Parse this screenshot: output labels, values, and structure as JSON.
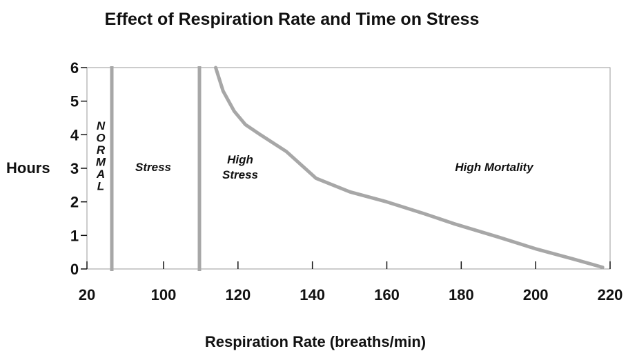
{
  "chart_data": {
    "type": "line",
    "title": "Effect of Respiration Rate and Time on Stress",
    "xlabel": "Respiration Rate (breaths/min)",
    "ylabel": "Hours",
    "x_ticks": [
      "20",
      "100",
      "120",
      "140",
      "160",
      "180",
      "200",
      "220"
    ],
    "y_ticks": [
      "0",
      "1",
      "2",
      "3",
      "4",
      "5",
      "6"
    ],
    "ylim": [
      0,
      6
    ],
    "grid": false,
    "boundaries": [
      {
        "x": 25,
        "y_range": [
          0,
          6
        ]
      },
      {
        "x": 110,
        "y_range": [
          0,
          6
        ]
      }
    ],
    "series": [
      {
        "points": [
          {
            "x": 114,
            "y": 6.0
          },
          {
            "x": 116,
            "y": 5.3
          },
          {
            "x": 119,
            "y": 4.7
          },
          {
            "x": 122,
            "y": 4.3
          },
          {
            "x": 126,
            "y": 4.0
          },
          {
            "x": 133,
            "y": 3.5
          },
          {
            "x": 141,
            "y": 2.7
          },
          {
            "x": 150,
            "y": 2.3
          },
          {
            "x": 160,
            "y": 2.0
          },
          {
            "x": 170,
            "y": 1.65
          },
          {
            "x": 178,
            "y": 1.35
          },
          {
            "x": 190,
            "y": 0.95
          },
          {
            "x": 200,
            "y": 0.6
          },
          {
            "x": 210,
            "y": 0.3
          },
          {
            "x": 218,
            "y": 0.05
          }
        ]
      }
    ],
    "regions": [
      {
        "label": "N\nO\nR\nM\nA\nL"
      },
      {
        "label": "Stress"
      },
      {
        "label": "High\nStress"
      },
      {
        "label": "High Mortality"
      }
    ]
  }
}
